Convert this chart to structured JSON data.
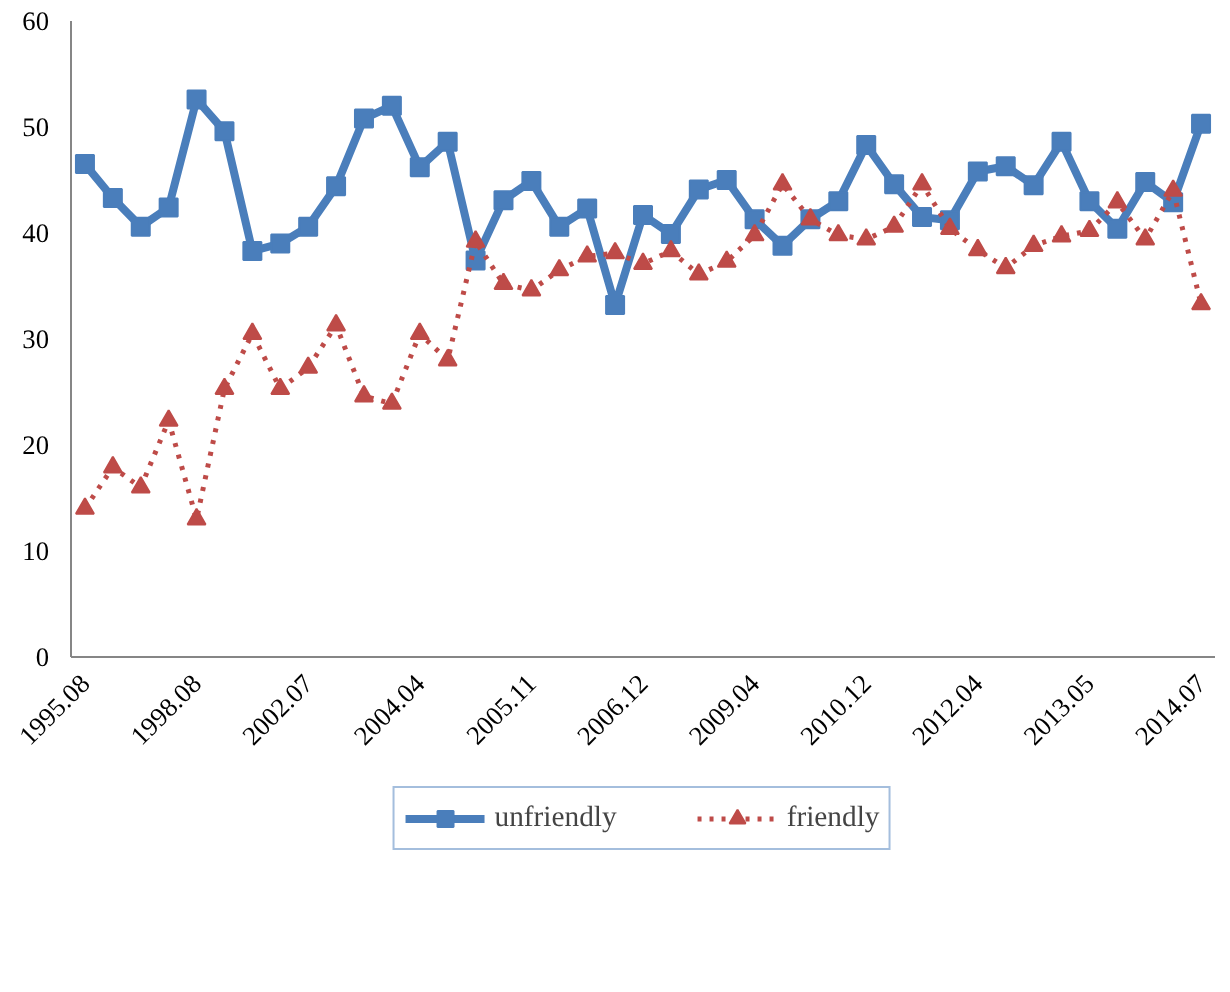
{
  "chart_data": {
    "type": "line",
    "categories": [
      "1995.08",
      null,
      null,
      null,
      "1998.08",
      null,
      null,
      null,
      "2002.07",
      null,
      null,
      null,
      "2004.04",
      null,
      null,
      null,
      "2005.11",
      null,
      null,
      null,
      "2006.12",
      null,
      null,
      null,
      "2009.04",
      null,
      null,
      null,
      "2010.12",
      null,
      null,
      null,
      "2012.04",
      null,
      null,
      null,
      "2013.05",
      null,
      null,
      null,
      "2014.07"
    ],
    "series": [
      {
        "name": "unfriendly",
        "color": "#4a7ebb",
        "marker": "square",
        "line_style": "solid",
        "values": [
          46.5,
          43.3,
          40.6,
          42.4,
          52.6,
          49.6,
          38.3,
          39.0,
          40.6,
          44.4,
          50.8,
          52.0,
          46.2,
          48.6,
          37.4,
          43.1,
          44.9,
          40.6,
          42.3,
          33.2,
          41.7,
          39.9,
          44.1,
          45.0,
          41.3,
          38.8,
          41.3,
          43.0,
          48.3,
          44.6,
          41.5,
          41.2,
          45.8,
          46.3,
          44.5,
          48.6,
          43.0,
          40.4,
          44.8,
          42.9,
          50.3
        ]
      },
      {
        "name": "friendly",
        "color": "#be4b48",
        "marker": "triangle",
        "line_style": "dotted",
        "values": [
          14.0,
          17.9,
          16.0,
          22.3,
          13.0,
          25.3,
          30.5,
          25.3,
          27.3,
          31.3,
          24.6,
          23.9,
          30.5,
          28.0,
          39.2,
          35.2,
          34.6,
          36.5,
          37.8,
          38.1,
          37.1,
          38.3,
          36.1,
          37.3,
          39.8,
          44.6,
          41.3,
          39.8,
          39.4,
          40.6,
          44.6,
          40.4,
          38.4,
          36.7,
          38.8,
          39.7,
          40.2,
          42.9,
          39.4,
          44.0,
          33.3
        ]
      }
    ],
    "ylim": [
      0,
      60
    ],
    "yticks": [
      0,
      10,
      20,
      30,
      40,
      50,
      60
    ],
    "grid": false,
    "legend": "bottom"
  }
}
